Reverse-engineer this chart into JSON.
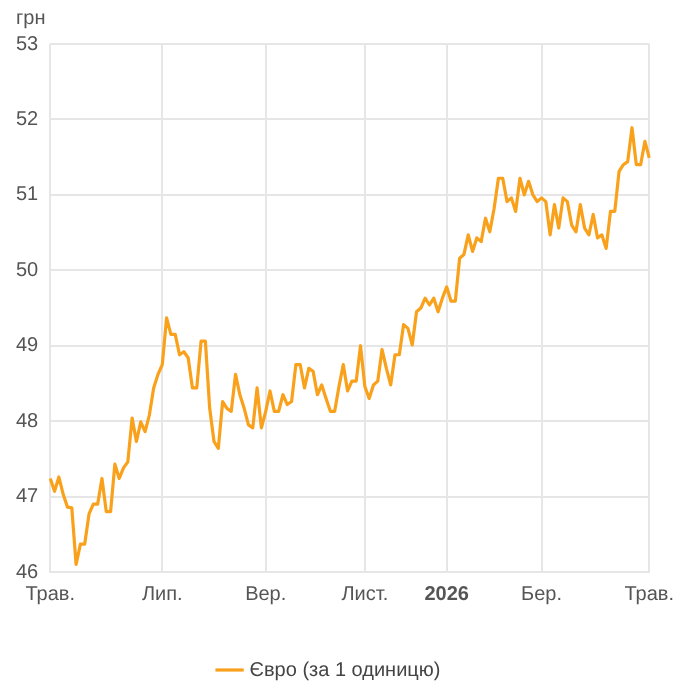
{
  "chart_data": {
    "type": "line",
    "ylabel": "грн",
    "legend": "bottom",
    "grid": true,
    "marker": "none",
    "line_style": "solid",
    "categories": [
      "Трав.",
      null,
      null,
      null,
      null,
      null,
      null,
      null,
      null,
      null,
      null,
      null,
      null,
      null,
      null,
      null,
      null,
      null,
      null,
      null,
      null,
      null,
      null,
      null,
      null,
      null,
      "Лип.",
      null,
      null,
      null,
      null,
      null,
      null,
      null,
      null,
      null,
      null,
      null,
      null,
      null,
      null,
      null,
      null,
      null,
      null,
      null,
      null,
      null,
      null,
      null,
      "Вер.",
      null,
      null,
      null,
      null,
      null,
      null,
      null,
      null,
      null,
      null,
      null,
      null,
      null,
      null,
      null,
      null,
      null,
      null,
      null,
      null,
      null,
      null,
      "Лист.",
      null,
      null,
      null,
      null,
      null,
      null,
      null,
      null,
      null,
      null,
      null,
      null,
      null,
      null,
      null,
      null,
      null,
      null,
      "2026",
      null,
      null,
      null,
      null,
      null,
      null,
      null,
      null,
      null,
      null,
      null,
      null,
      null,
      null,
      null,
      null,
      null,
      null,
      null,
      null,
      null,
      "Бер.",
      null,
      null,
      null,
      null,
      null,
      null,
      null,
      null,
      null,
      null,
      null,
      null,
      null,
      null,
      null,
      null,
      null,
      null,
      null,
      null,
      null,
      null,
      null,
      null,
      "Трав."
    ],
    "ylim": [
      46,
      53
    ],
    "yticks": [
      46,
      47,
      48,
      49,
      50,
      51,
      52,
      53
    ],
    "series": [
      {
        "name": "Євро (за 1 одиницю)",
        "color": "#f9a11b",
        "values": [
          47.24,
          47.07,
          47.26,
          47.03,
          46.86,
          46.85,
          46.1,
          46.37,
          46.37,
          46.77,
          46.9,
          46.9,
          47.24,
          46.8,
          46.8,
          47.43,
          47.24,
          47.38,
          47.46,
          48.04,
          47.73,
          47.99,
          47.86,
          48.08,
          48.44,
          48.62,
          48.75,
          49.37,
          49.15,
          49.15,
          48.88,
          48.92,
          48.84,
          48.44,
          48.44,
          49.06,
          49.06,
          48.17,
          47.73,
          47.64,
          48.26,
          48.17,
          48.13,
          48.62,
          48.35,
          48.17,
          47.95,
          47.91,
          48.44,
          47.91,
          48.13,
          48.4,
          48.13,
          48.13,
          48.35,
          48.22,
          48.26,
          48.75,
          48.75,
          48.44,
          48.7,
          48.66,
          48.35,
          48.48,
          48.3,
          48.13,
          48.13,
          48.46,
          48.75,
          48.4,
          48.53,
          48.53,
          49.0,
          48.46,
          48.3,
          48.48,
          48.53,
          48.95,
          48.7,
          48.48,
          48.88,
          48.88,
          49.28,
          49.23,
          49.01,
          49.45,
          49.5,
          49.63,
          49.54,
          49.63,
          49.45,
          49.63,
          49.78,
          49.59,
          49.59,
          50.16,
          50.21,
          50.47,
          50.25,
          50.43,
          50.38,
          50.69,
          50.51,
          50.82,
          51.22,
          51.22,
          50.91,
          50.96,
          50.78,
          51.22,
          51.0,
          51.18,
          51.0,
          50.91,
          50.96,
          50.91,
          50.47,
          50.87,
          50.56,
          50.96,
          50.91,
          50.6,
          50.51,
          50.87,
          50.56,
          50.47,
          50.74,
          50.43,
          50.47,
          50.29,
          50.78,
          50.78,
          51.31,
          51.4,
          51.44,
          51.89,
          51.4,
          51.4,
          51.71,
          51.49
        ]
      }
    ]
  }
}
